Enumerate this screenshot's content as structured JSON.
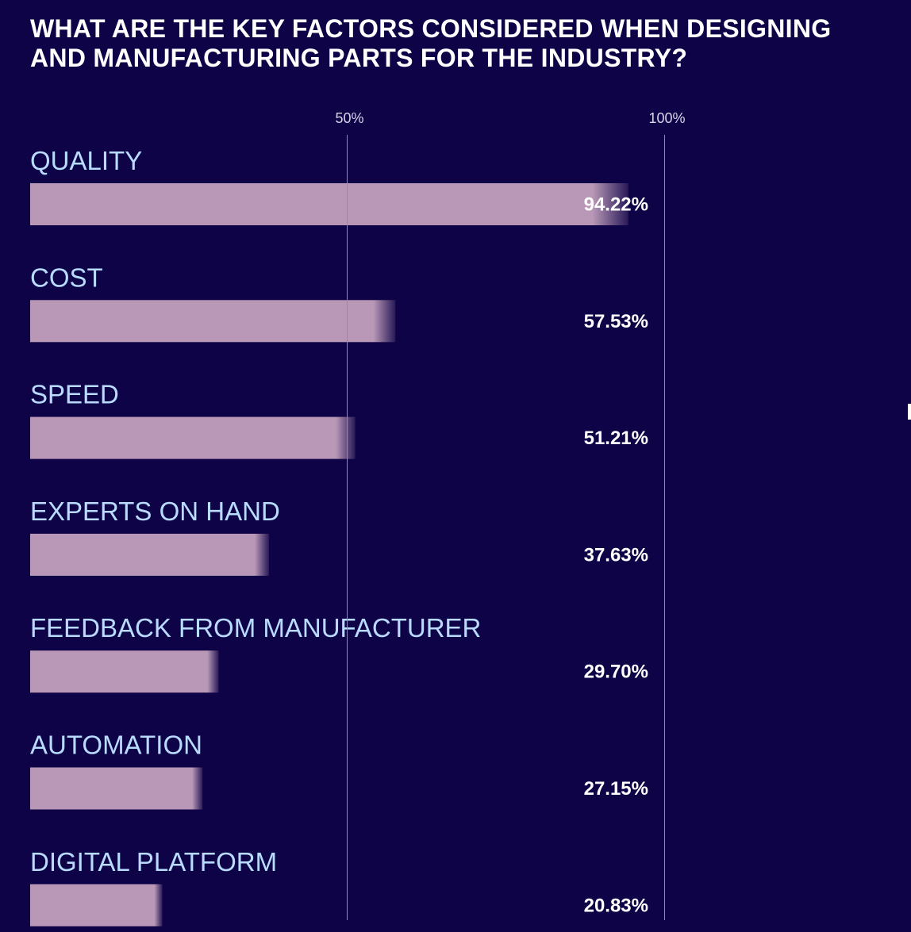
{
  "title": "WHAT ARE THE KEY FACTORS CONSIDERED WHEN DESIGNING AND MANUFACTURING PARTS FOR THE INDUSTRY?",
  "colors": {
    "background": "#0f0347",
    "bar": "#b898b6",
    "category_label": "#b9dbff",
    "value_label": "#ffffff",
    "gridline": "#8f89b5",
    "tick_label": "#d7d3ea"
  },
  "chart_data": {
    "type": "bar",
    "orientation": "horizontal",
    "title": "WHAT ARE THE KEY FACTORS CONSIDERED WHEN DESIGNING AND MANUFACTURING PARTS FOR THE INDUSTRY?",
    "categories": [
      "QUALITY",
      "COST",
      "SPEED",
      "EXPERTS ON HAND",
      "FEEDBACK FROM MANUFACTURER",
      "AUTOMATION",
      "DIGITAL PLATFORM"
    ],
    "values": [
      94.22,
      57.53,
      51.21,
      37.63,
      29.7,
      27.15,
      20.83
    ],
    "value_labels": [
      "94.22%",
      "57.53%",
      "51.21%",
      "37.63%",
      "29.70%",
      "27.15%",
      "20.83%"
    ],
    "xlim": [
      0,
      100
    ],
    "gridlines": [
      50,
      100
    ],
    "tick_labels": [
      "50%",
      "100%"
    ],
    "xlabel": "",
    "ylabel": ""
  }
}
